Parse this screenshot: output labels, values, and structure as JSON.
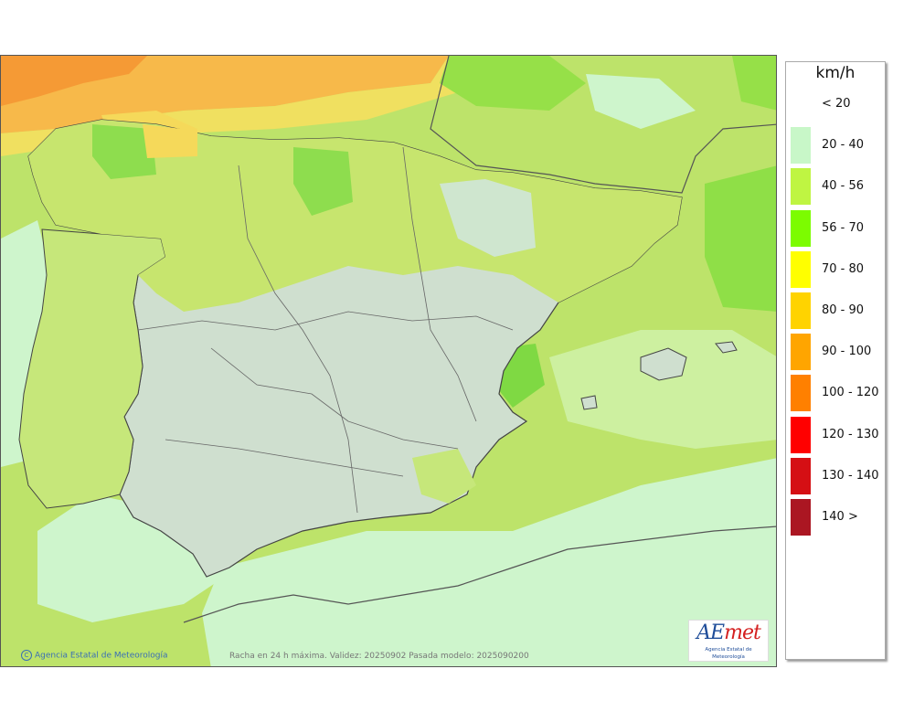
{
  "map": {
    "credit": "Agencia Estatal de Meteorología",
    "copyright_symbol": "C",
    "caption": "Racha en 24 h máxima. Validez: 20250902 Pasada modelo: 2025090200",
    "logo_main_a": "AE",
    "logo_main_b": "met",
    "logo_sub": "Agencia Estatal de Meteorología",
    "colors": {
      "sea_low": "#d7f5d4",
      "band_20_40": "#cef5cc",
      "band_40_56": "#c3e86b",
      "band_56_70": "#88e048",
      "band_70_80": "#f2e84a",
      "band_80_90": "#f5b432",
      "land_tint": "#ccdccc",
      "border": "#333333"
    }
  },
  "legend": {
    "unit": "km/h",
    "items": [
      {
        "label": "< 20",
        "color": "#ffffff"
      },
      {
        "label": "20 - 40",
        "color": "#c8f7c8"
      },
      {
        "label": "40 - 56",
        "color": "#bff542"
      },
      {
        "label": "56 - 70",
        "color": "#7cfc00"
      },
      {
        "label": "70 - 80",
        "color": "#ffff00"
      },
      {
        "label": "80 - 90",
        "color": "#ffd300"
      },
      {
        "label": "90 - 100",
        "color": "#ffa500"
      },
      {
        "label": "100 - 120",
        "color": "#ff8000"
      },
      {
        "label": "120 - 130",
        "color": "#ff0000"
      },
      {
        "label": "130 - 140",
        "color": "#d50f14"
      },
      {
        "label": "140 >",
        "color": "#ab1622"
      }
    ]
  }
}
